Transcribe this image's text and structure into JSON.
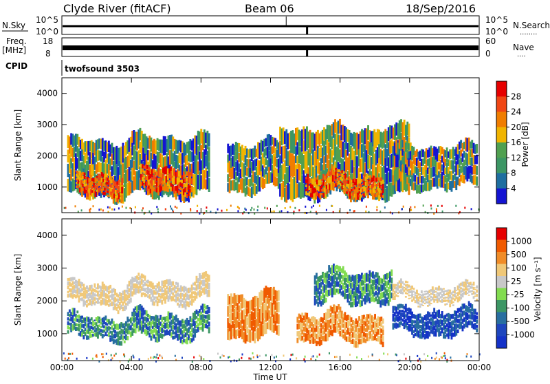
{
  "header": {
    "station": "Clyde River (fitACF)",
    "beam": "Beam 06",
    "date": "18/Sep/2016"
  },
  "summary_panels": {
    "nsky": {
      "label": "N.Sky",
      "ticks_left": [
        "10^5",
        "10^0"
      ],
      "right_label": "N.Search",
      "ticks_right": [
        "10^5",
        "10^0"
      ],
      "right_dots": "........"
    },
    "freq": {
      "label_lines": [
        "Freq.",
        "[MHz]"
      ],
      "ticks_left": [
        "18",
        "8"
      ],
      "right_label": "Nave",
      "ticks_right": [
        "60",
        "0"
      ],
      "right_dots": "...."
    },
    "cpid": {
      "label": "CPID",
      "value": "twofsound 3503"
    }
  },
  "colors": {
    "power": [
      "#1414d2",
      "#1e6ea0",
      "#3c9664",
      "#50a050",
      "#f0b400",
      "#f07d00",
      "#f04614",
      "#e60000"
    ],
    "velocity": [
      "#e60000",
      "#f05a00",
      "#f08c28",
      "#f0c878",
      "#c8c8c8",
      "#82dc50",
      "#3c9664",
      "#286ea0",
      "#1e46be",
      "#1432c8"
    ]
  },
  "chart_data": [
    {
      "type": "heatmap",
      "name": "power",
      "ylabel": "Slant Range [km]",
      "yticks": [
        "1000",
        "2000",
        "3000",
        "4000"
      ],
      "ylim": [
        180,
        4500
      ],
      "xlim": [
        0,
        24
      ],
      "colorbar": {
        "label": "Power [dB]",
        "ticks": [
          "4",
          "8",
          "12",
          "16",
          "20",
          "24",
          "28"
        ]
      },
      "echo_regions": [
        {
          "t0": 0.3,
          "t1": 4.0,
          "r0": 600,
          "r1": 2600,
          "level": "mid"
        },
        {
          "t0": 0.8,
          "t1": 3.5,
          "r0": 700,
          "r1": 1500,
          "level": "high"
        },
        {
          "t0": 4.0,
          "t1": 8.5,
          "r0": 650,
          "r1": 2700,
          "level": "mid"
        },
        {
          "t0": 4.5,
          "t1": 7.5,
          "r0": 800,
          "r1": 1700,
          "level": "high"
        },
        {
          "t0": 9.5,
          "t1": 12.5,
          "r0": 800,
          "r1": 2500,
          "level": "mid"
        },
        {
          "t0": 12.5,
          "t1": 20.0,
          "r0": 600,
          "r1": 3000,
          "level": "mid"
        },
        {
          "t0": 14.0,
          "t1": 18.5,
          "r0": 700,
          "r1": 1500,
          "level": "high"
        },
        {
          "t0": 19.0,
          "t1": 23.9,
          "r0": 900,
          "r1": 2400,
          "level": "mid"
        }
      ]
    },
    {
      "type": "heatmap",
      "name": "velocity",
      "ylabel": "Slant Range [km]",
      "yticks": [
        "1000",
        "2000",
        "3000",
        "4000"
      ],
      "ylim": [
        180,
        4500
      ],
      "xlim": [
        0,
        24
      ],
      "xlabel": "Time UT",
      "xticks": [
        "00:00",
        "04:00",
        "08:00",
        "12:00",
        "16:00",
        "20:00",
        "00:00"
      ],
      "colorbar": {
        "label": "Velocity [m s⁻¹]",
        "ticks": [
          "1000",
          "500",
          "100",
          "25",
          "-25",
          "-100",
          "-500",
          "-1000"
        ]
      },
      "echo_regions": [
        {
          "t0": 0.3,
          "t1": 4.0,
          "r0": 800,
          "r1": 1600,
          "level": "toward"
        },
        {
          "t0": 0.3,
          "t1": 4.0,
          "r0": 1800,
          "r1": 2600,
          "level": "gray"
        },
        {
          "t0": 4.0,
          "t1": 8.5,
          "r0": 800,
          "r1": 1700,
          "level": "toward"
        },
        {
          "t0": 4.0,
          "t1": 8.5,
          "r0": 1900,
          "r1": 2700,
          "level": "gray"
        },
        {
          "t0": 9.5,
          "t1": 12.5,
          "r0": 800,
          "r1": 2300,
          "level": "away"
        },
        {
          "t0": 13.5,
          "t1": 18.5,
          "r0": 700,
          "r1": 1700,
          "level": "away"
        },
        {
          "t0": 14.5,
          "t1": 19.0,
          "r0": 1900,
          "r1": 3000,
          "level": "toward"
        },
        {
          "t0": 19.0,
          "t1": 23.9,
          "r0": 900,
          "r1": 1800,
          "level": "fast-toward"
        },
        {
          "t0": 19.0,
          "t1": 23.9,
          "r0": 1900,
          "r1": 2500,
          "level": "gray"
        }
      ]
    }
  ]
}
